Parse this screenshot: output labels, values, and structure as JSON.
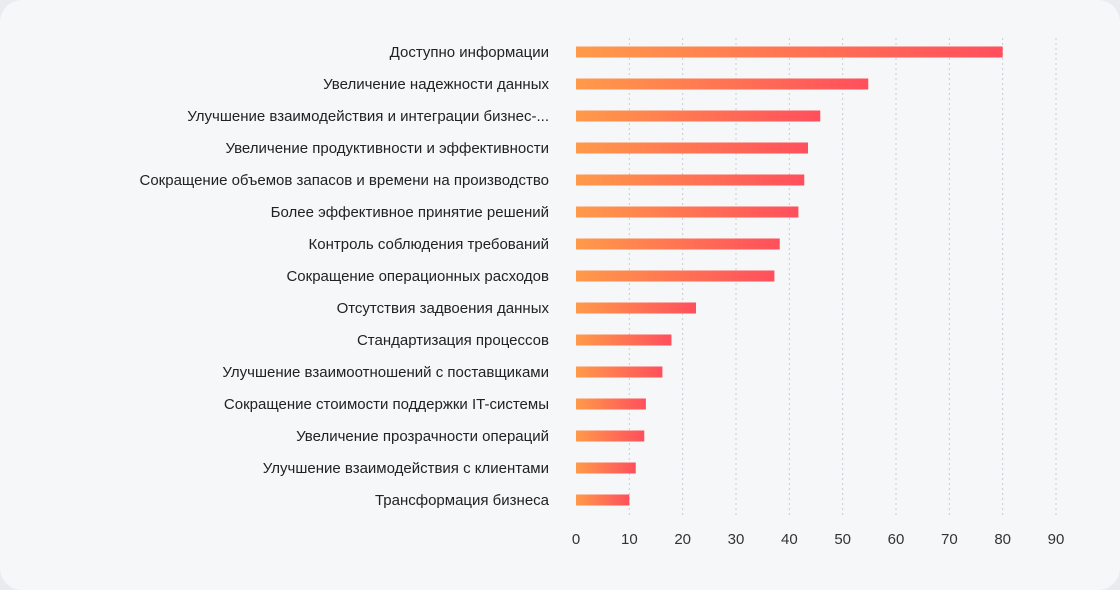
{
  "chart_data": {
    "type": "bar",
    "orientation": "horizontal",
    "title": "",
    "xlabel": "",
    "ylabel": "",
    "xlim": [
      0,
      90
    ],
    "xticks": [
      0,
      10,
      20,
      30,
      40,
      50,
      60,
      70,
      80,
      90
    ],
    "grid": true,
    "categories": [
      "Доступно информации",
      "Увеличение надежности данных",
      "Улучшение взаимодействия и интеграции бизнес-...",
      "Увеличение продуктивности и эффективности",
      "Сокращение объемов запасов и времени на производство",
      "Более эффективное принятие решений",
      "Контроль соблюдения требований",
      "Сокращение операционных расходов",
      "Отсутствия задвоения данных",
      "Стандартизация процессов",
      "Улучшение взаимоотношений с поставщиками",
      "Сокращение стоимости поддержки IT-системы",
      "Увеличение прозрачности операций",
      "Улучшение взаимодействия с клиентами",
      "Трансформация бизнеса"
    ],
    "values": [
      80,
      54.8,
      45.8,
      43.5,
      42.8,
      41.7,
      38.2,
      37.2,
      22.5,
      17.9,
      16.2,
      13.1,
      12.8,
      11.2,
      10
    ],
    "colors": {
      "bar_start": "#ff9a4a",
      "bar_end": "#ff4f5c"
    }
  }
}
